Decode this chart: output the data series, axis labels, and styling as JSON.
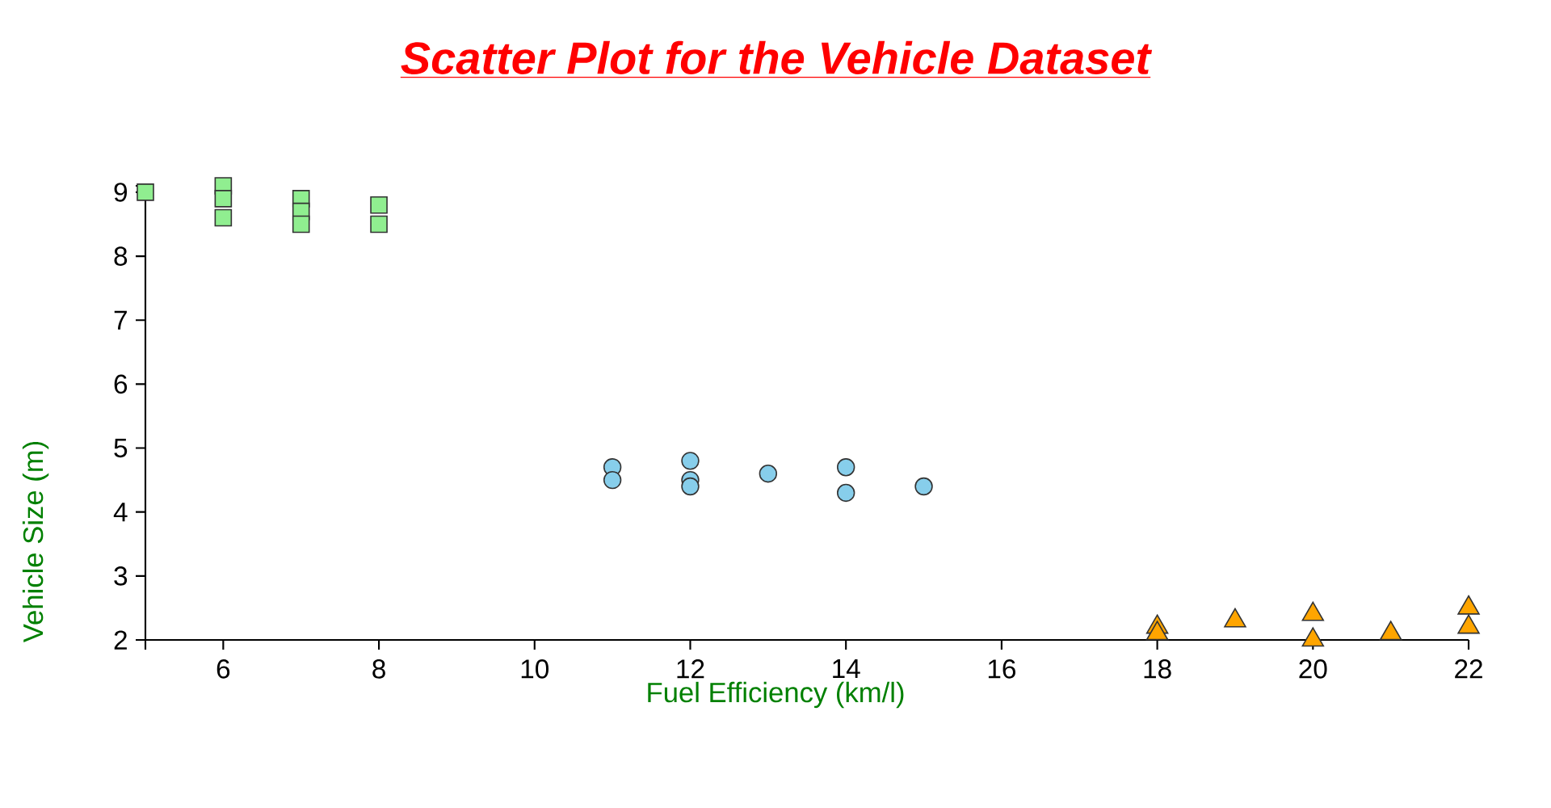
{
  "chart_data": {
    "type": "scatter",
    "title": "Scatter Plot for the Vehicle Dataset",
    "xlabel": "Fuel Efficiency (km/l)",
    "ylabel": "Vehicle Size (m)",
    "xlim": [
      5,
      22
    ],
    "ylim": [
      2,
      9.1
    ],
    "xticks": [
      {
        "value": 5,
        "label": null
      },
      6,
      8,
      10,
      12,
      14,
      16,
      18,
      20,
      22
    ],
    "yticks": [
      2,
      3,
      4,
      5,
      6,
      7,
      8,
      9,
      {
        "value": 9.1,
        "label": null
      }
    ],
    "series": [
      {
        "color": "#90ee90",
        "marker": "square",
        "x": [
          5,
          6,
          6,
          6,
          7,
          7,
          7,
          8,
          8
        ],
        "values": [
          9.0,
          9.1,
          8.9,
          8.6,
          8.9,
          8.7,
          8.5,
          8.8,
          8.5
        ]
      },
      {
        "color": "#87ceeb",
        "marker": "circle",
        "x": [
          11,
          11,
          12,
          12,
          12,
          13,
          14,
          14,
          15
        ],
        "values": [
          4.7,
          4.5,
          4.8,
          4.5,
          4.4,
          4.6,
          4.7,
          4.3,
          4.4
        ]
      },
      {
        "color": "#ffa500",
        "marker": "triangle",
        "x": [
          18,
          18,
          19,
          20,
          20,
          21,
          22,
          22
        ],
        "values": [
          2.2,
          2.1,
          2.3,
          2.4,
          2.0,
          2.1,
          2.5,
          2.2
        ]
      }
    ]
  }
}
